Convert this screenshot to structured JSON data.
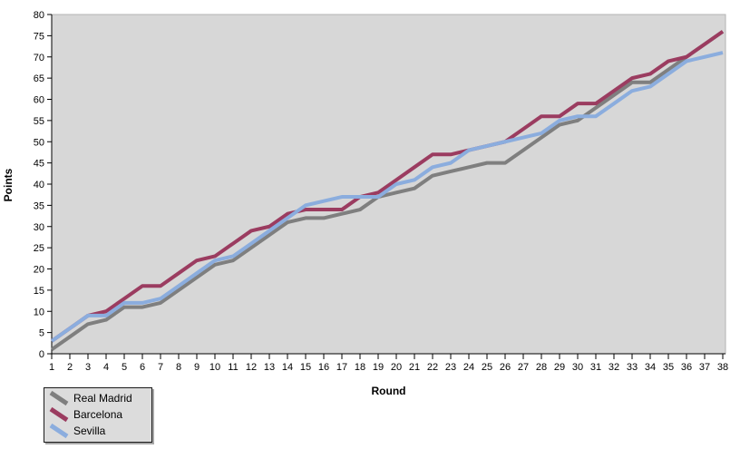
{
  "chart_data": {
    "type": "line",
    "title": "",
    "xlabel": "Round",
    "ylabel": "Points",
    "x": [
      1,
      2,
      3,
      4,
      5,
      6,
      7,
      8,
      9,
      10,
      11,
      12,
      13,
      14,
      15,
      16,
      17,
      18,
      19,
      20,
      21,
      22,
      23,
      24,
      25,
      26,
      27,
      28,
      29,
      30,
      31,
      32,
      33,
      34,
      35,
      36,
      37,
      38
    ],
    "xlim": [
      1,
      38
    ],
    "ylim": [
      0,
      80
    ],
    "y_tick_step": 5,
    "x_tick_step": 1,
    "grid": false,
    "legend_position": "bottom-left",
    "plot_background": "#d7d7d7",
    "axis_color": "#000000",
    "series": [
      {
        "name": "Real Madrid",
        "color": "#7f7f7f",
        "values": [
          1,
          4,
          7,
          8,
          11,
          11,
          12,
          15,
          18,
          21,
          22,
          25,
          28,
          31,
          32,
          32,
          33,
          34,
          37,
          38,
          39,
          42,
          43,
          44,
          45,
          45,
          48,
          51,
          54,
          55,
          58,
          61,
          64,
          64,
          67,
          70,
          73,
          76
        ]
      },
      {
        "name": "Barcelona",
        "color": "#9b3c60",
        "values": [
          3,
          6,
          9,
          10,
          13,
          16,
          16,
          19,
          22,
          23,
          26,
          29,
          30,
          33,
          34,
          34,
          34,
          37,
          38,
          41,
          44,
          47,
          47,
          48,
          49,
          50,
          53,
          56,
          56,
          59,
          59,
          62,
          65,
          66,
          69,
          70,
          73,
          76
        ]
      },
      {
        "name": "Sevilla",
        "color": "#8badde",
        "values": [
          3,
          6,
          9,
          9,
          12,
          12,
          13,
          16,
          19,
          22,
          23,
          26,
          29,
          32,
          35,
          36,
          37,
          37,
          37,
          40,
          41,
          44,
          45,
          48,
          49,
          50,
          51,
          52,
          55,
          56,
          56,
          59,
          62,
          63,
          66,
          69,
          70,
          71
        ]
      }
    ]
  }
}
